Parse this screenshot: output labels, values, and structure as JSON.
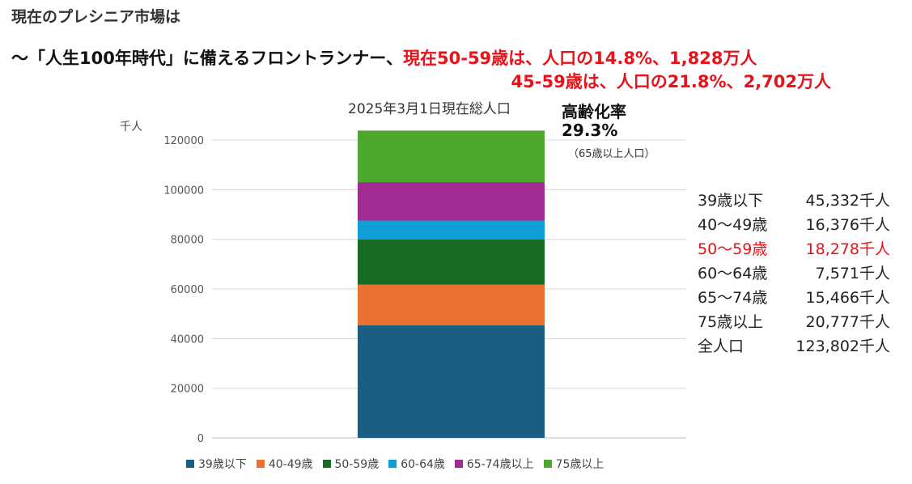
{
  "header": {
    "title": "現在のプレシニア市場は",
    "subtitle_line1_prefix": "〜「人生100年時代」に備えるフロントランナー、",
    "subtitle_line1_highlight": "現在50-59歳は、人口の14.8%、1,828万人",
    "subtitle_line2": "45-59歳は、人口の21.8%、2,702万人"
  },
  "aging_rate": {
    "label": "高齢化率",
    "value": "29.3%",
    "note": "（65歳以上人口）"
  },
  "breakdown": [
    {
      "label": "39歳以下",
      "value": "45,332千人",
      "highlight": false
    },
    {
      "label": "40〜49歳",
      "value": "16,376千人",
      "highlight": false
    },
    {
      "label": "50〜59歳",
      "value": "18,278千人",
      "highlight": true
    },
    {
      "label": "60〜64歳",
      "value": "7,571千人",
      "highlight": false
    },
    {
      "label": "65〜74歳",
      "value": "15,466千人",
      "highlight": false
    },
    {
      "label": "75歳以上",
      "value": "20,777千人",
      "highlight": false
    },
    {
      "label": "全人口",
      "value": "123,802千人",
      "highlight": false
    }
  ],
  "chart_data": {
    "type": "bar",
    "stacked": true,
    "title": "2025年3月1日現在総人口",
    "ylabel": "千人",
    "ylim": [
      0,
      124000
    ],
    "yticks": [
      0,
      20000,
      40000,
      60000,
      80000,
      100000,
      120000
    ],
    "grid": true,
    "legend_position": "bottom",
    "categories": [
      ""
    ],
    "series": [
      {
        "name": "39歳以下",
        "values": [
          45332
        ],
        "color": "#1a5f82"
      },
      {
        "name": "40-49歳",
        "values": [
          16376
        ],
        "color": "#e97132"
      },
      {
        "name": "50-59歳",
        "values": [
          18278
        ],
        "color": "#196b24"
      },
      {
        "name": "60-64歳",
        "values": [
          7571
        ],
        "color": "#0f9ed5"
      },
      {
        "name": "65-74歳以上",
        "values": [
          15466
        ],
        "color": "#a02b93"
      },
      {
        "name": "75歳以上",
        "values": [
          20777
        ],
        "color": "#4ea72e"
      }
    ]
  }
}
